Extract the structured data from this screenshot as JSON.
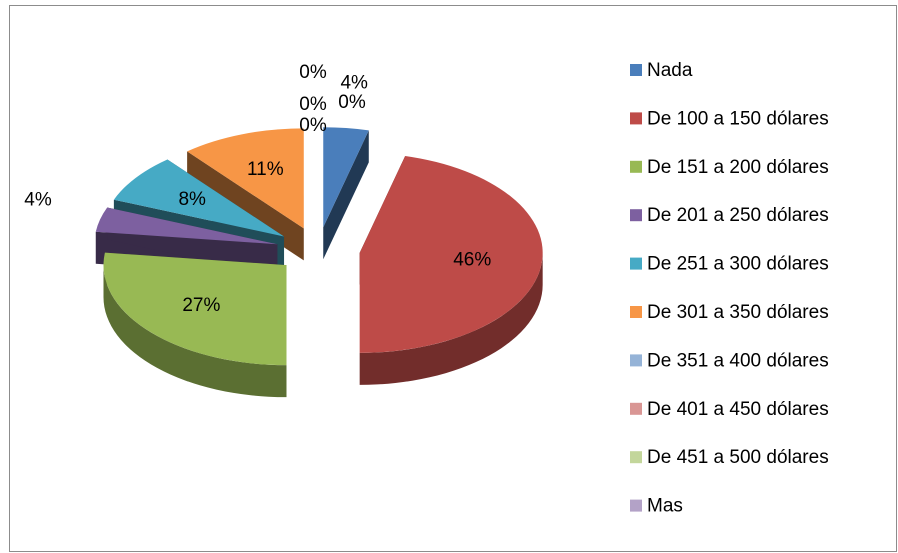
{
  "chart_data": {
    "type": "pie",
    "categories": [
      "Nada",
      "De 100 a 150 dólares",
      "De 151 a 200 dólares",
      "De 201 a 250 dólares",
      "De 251 a 300 dólares",
      "De 301 a 350 dólares",
      "De 351 a 400 dólares",
      "De 401 a 450 dólares",
      "De 451 a 500 dólares",
      "Mas"
    ],
    "values": [
      4,
      46,
      27,
      4,
      8,
      11,
      0,
      0,
      0,
      0
    ],
    "value_labels": [
      "4%",
      "46%",
      "27%",
      "4%",
      "8%",
      "11%",
      "0%",
      "0%",
      "0%",
      "0%"
    ],
    "colors": [
      "#4a7ebb",
      "#be4b48",
      "#98b954",
      "#7d60a0",
      "#46aac5",
      "#f79646",
      "#95b3d7",
      "#d99694",
      "#c3d69b",
      "#b3a2c7"
    ],
    "legend": "right"
  }
}
